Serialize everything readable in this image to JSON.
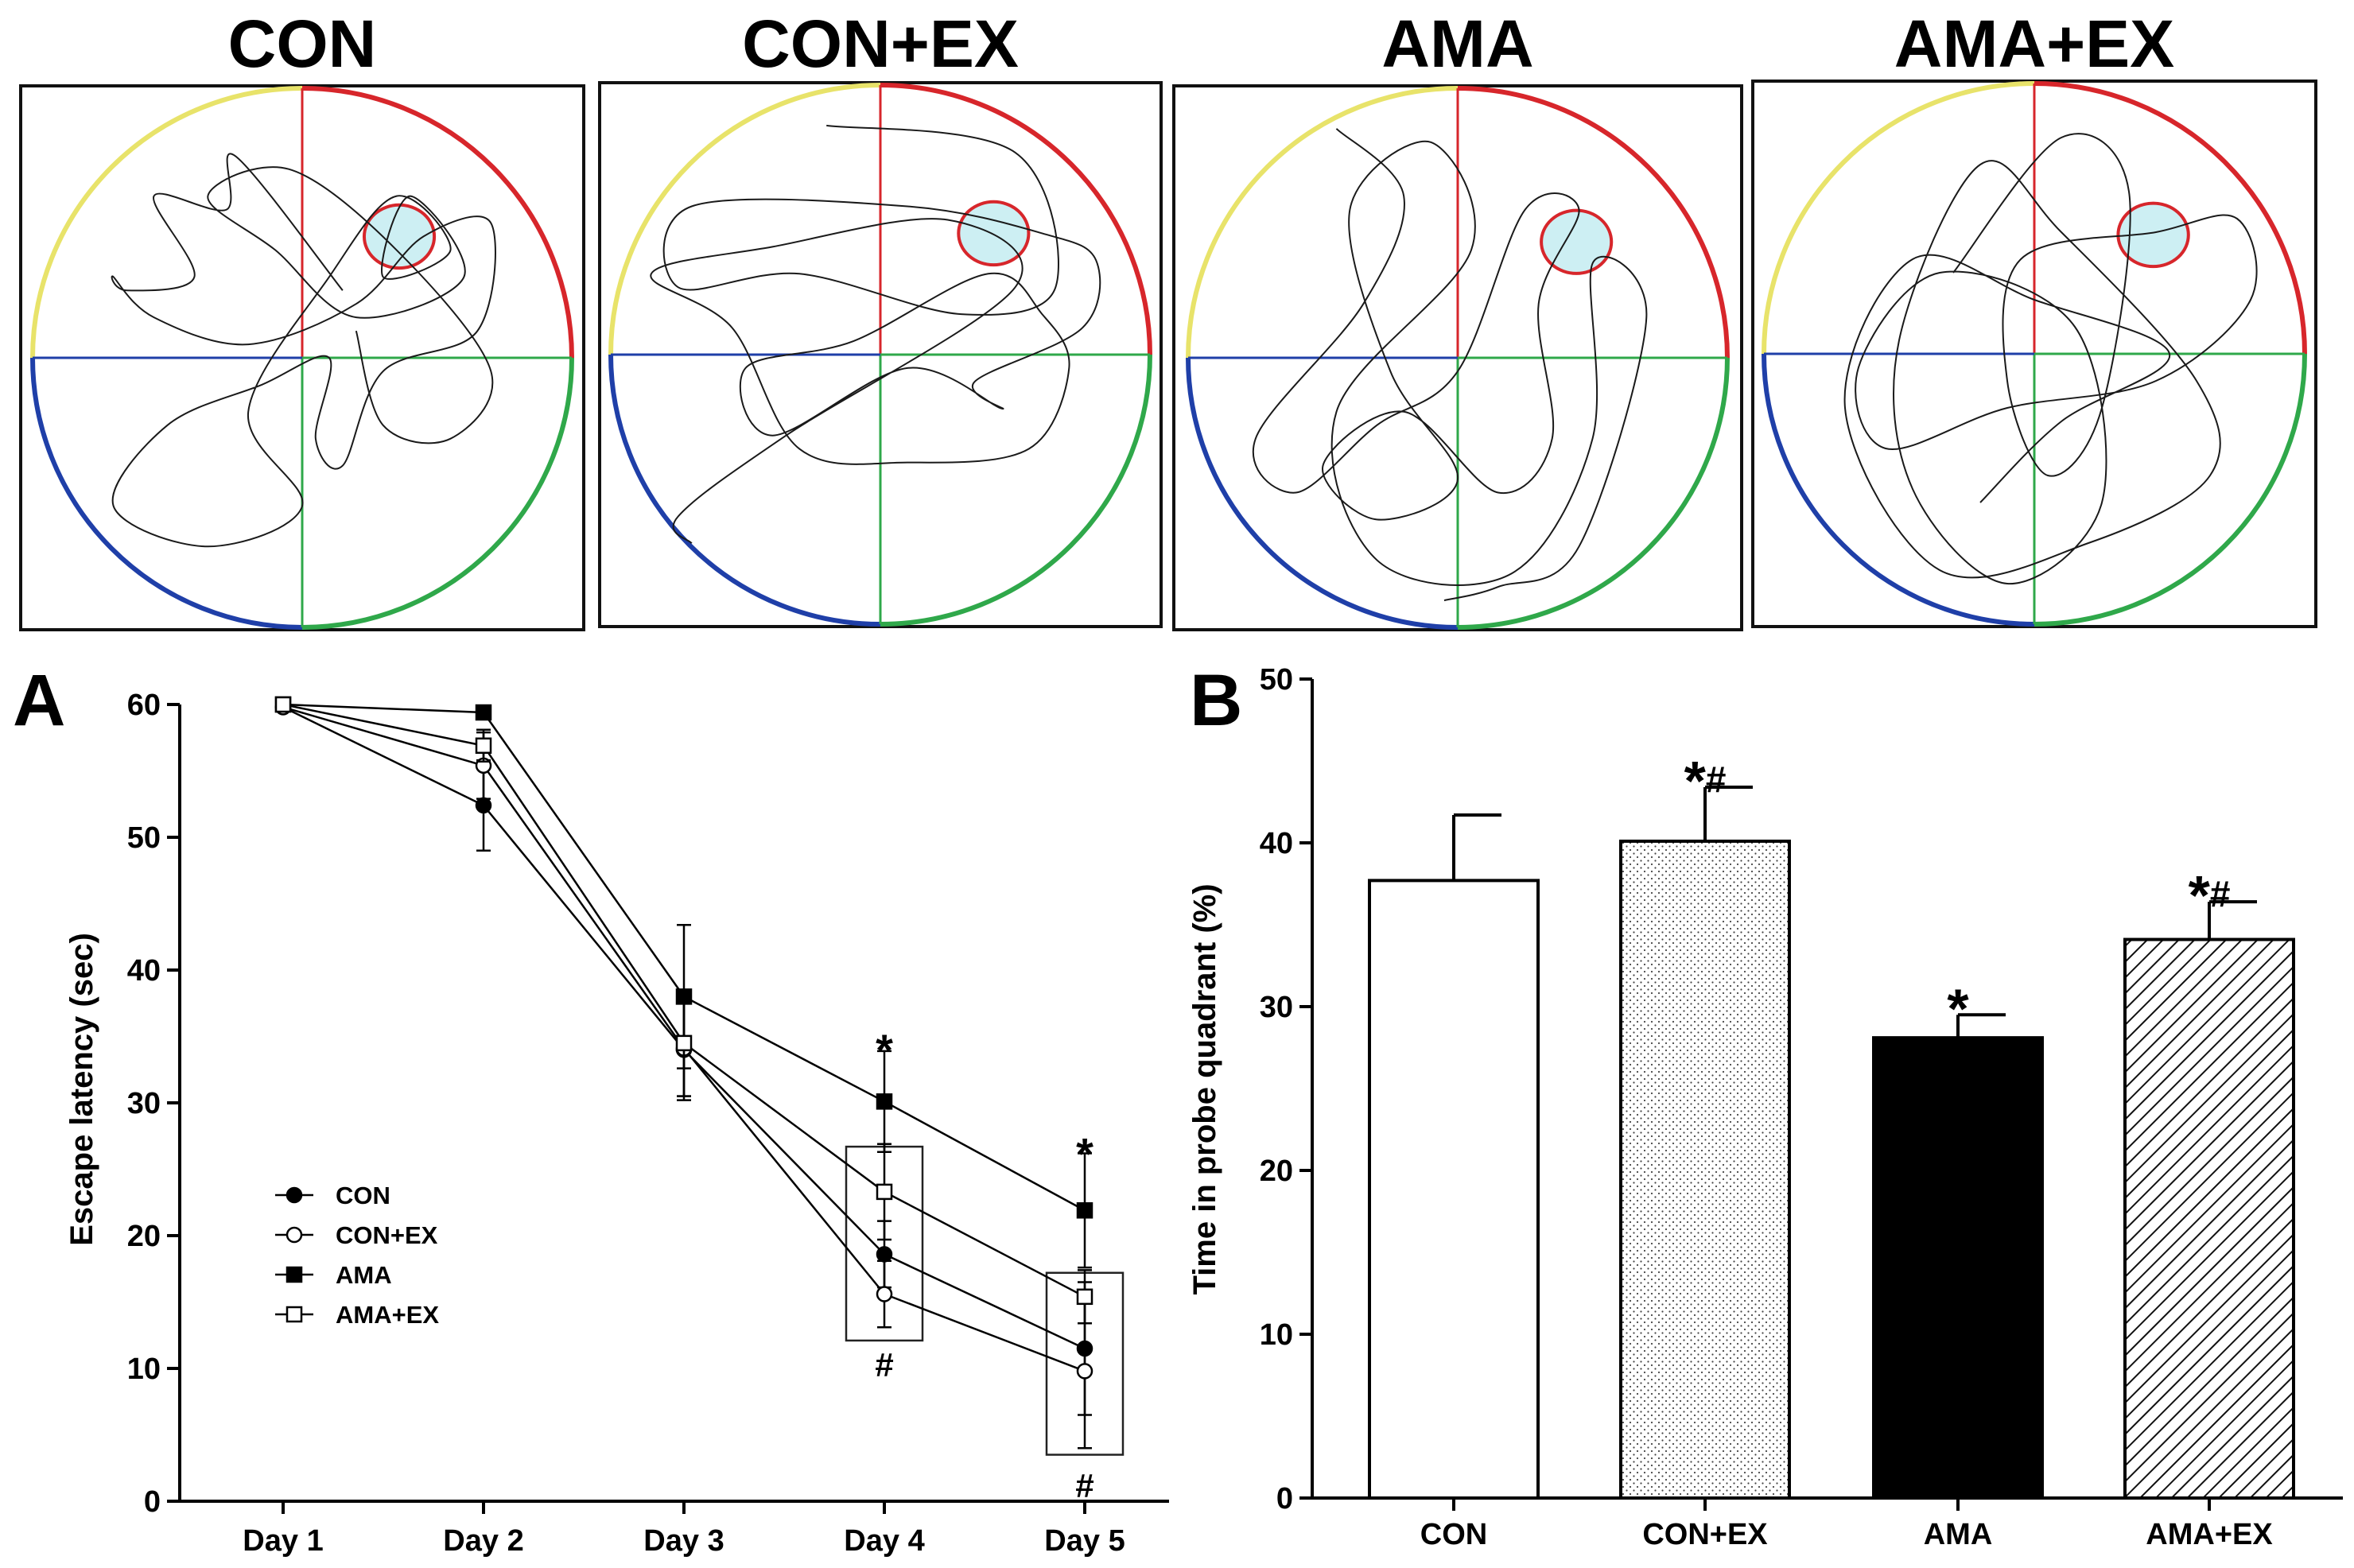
{
  "panel_titles": [
    "CON",
    "CON+EX",
    "AMA",
    "AMA+EX"
  ],
  "colors": {
    "q1": "#d7262b",
    "q2": "#e8e36a",
    "q3": "#1f3fa8",
    "q4": "#2fa84a",
    "platform_stroke": "#d7262b",
    "platform_fill": "#cdeff3"
  },
  "chart_data": [
    {
      "type": "line",
      "panel_label": "A",
      "title": "",
      "xlabel": "",
      "ylabel": "Escape latency (sec)",
      "categories": [
        "Day 1",
        "Day 2",
        "Day 3",
        "Day 4",
        "Day 5"
      ],
      "ylim": [
        0,
        60
      ],
      "yticks": [
        0,
        10,
        20,
        30,
        40,
        50,
        60
      ],
      "grid": false,
      "legend": "center-left",
      "series": [
        {
          "name": "CON",
          "marker": "circle-filled",
          "values": [
            59.8,
            52.4,
            34.0,
            18.6,
            11.5
          ],
          "errors": [
            0.3,
            3.4,
            3.8,
            2.5,
            5.0
          ]
        },
        {
          "name": "CON+EX",
          "marker": "circle-open",
          "values": [
            59.8,
            55.4,
            34.1,
            15.6,
            9.8
          ],
          "errors": [
            0.3,
            2.5,
            3.6,
            2.5,
            5.8
          ]
        },
        {
          "name": "AMA",
          "marker": "square-filled",
          "values": [
            60.0,
            59.4,
            38.0,
            30.1,
            21.9
          ],
          "errors": [
            0.2,
            0.3,
            5.4,
            3.8,
            4.3
          ]
        },
        {
          "name": "AMA+EX",
          "marker": "square-open",
          "values": [
            60.0,
            56.9,
            34.5,
            23.3,
            15.4
          ],
          "errors": [
            0.2,
            1.2,
            4.0,
            3.6,
            2.0
          ]
        }
      ],
      "annotations": [
        {
          "x": "Day 4",
          "label": "*"
        },
        {
          "x": "Day 4",
          "label": "#"
        },
        {
          "x": "Day 5",
          "label": "*"
        },
        {
          "x": "Day 5",
          "label": "#"
        }
      ]
    },
    {
      "type": "bar",
      "panel_label": "B",
      "title": "",
      "xlabel": "",
      "ylabel": "Time in probe quadrant  (%)",
      "categories": [
        "CON",
        "CON+EX",
        "AMA",
        "AMA+EX"
      ],
      "values": [
        37.7,
        40.1,
        28.1,
        34.1
      ],
      "errors": [
        4.0,
        3.3,
        1.4,
        2.3
      ],
      "fills": [
        "white",
        "dots",
        "black",
        "hatch"
      ],
      "ylim": [
        0,
        50
      ],
      "yticks": [
        0,
        10,
        20,
        30,
        40,
        50
      ],
      "grid": false,
      "annotations": [
        "",
        "*#",
        "*",
        "*#"
      ]
    }
  ]
}
